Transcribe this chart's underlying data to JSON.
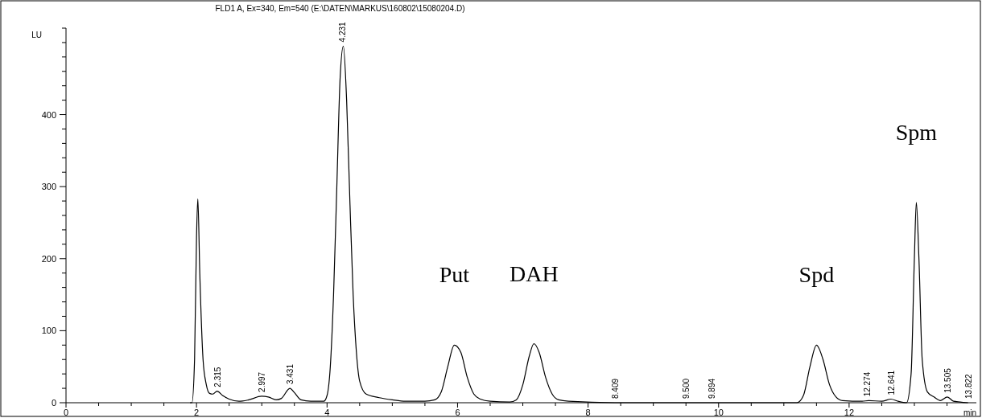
{
  "chart_data": {
    "type": "line",
    "title": "FLD1 A, Ex=340, Em=540 (E:\\DATEN\\MARKUS\\160802\\15080204.D)",
    "xlabel": "min",
    "ylabel": "LU",
    "xlim": [
      0,
      13.95
    ],
    "ylim": [
      0,
      520
    ],
    "xticks": [
      0,
      {
        "value": 0.5,
        "label": null
      },
      {
        "value": 1,
        "label": null
      },
      {
        "value": 1.5,
        "label": null
      },
      2,
      {
        "value": 2.5,
        "label": null
      },
      {
        "value": 3,
        "label": null
      },
      {
        "value": 3.5,
        "label": null
      },
      4,
      {
        "value": 4.5,
        "label": null
      },
      {
        "value": 5,
        "label": null
      },
      {
        "value": 5.5,
        "label": null
      },
      6,
      {
        "value": 6.5,
        "label": null
      },
      {
        "value": 7,
        "label": null
      },
      {
        "value": 7.5,
        "label": null
      },
      8,
      {
        "value": 8.5,
        "label": null
      },
      {
        "value": 9,
        "label": null
      },
      {
        "value": 9.5,
        "label": null
      },
      10,
      {
        "value": 10.5,
        "label": null
      },
      {
        "value": 11,
        "label": null
      },
      {
        "value": 11.5,
        "label": null
      },
      12,
      {
        "value": 12.5,
        "label": null
      },
      {
        "value": 13,
        "label": null
      },
      {
        "value": 13.5,
        "label": null
      }
    ],
    "yticks": [
      0,
      {
        "value": 20,
        "label": null
      },
      {
        "value": 40,
        "label": null
      },
      {
        "value": 60,
        "label": null
      },
      {
        "value": 80,
        "label": null
      },
      100,
      {
        "value": 120,
        "label": null
      },
      {
        "value": 140,
        "label": null
      },
      {
        "value": 160,
        "label": null
      },
      {
        "value": 180,
        "label": null
      },
      200,
      {
        "value": 220,
        "label": null
      },
      {
        "value": 240,
        "label": null
      },
      {
        "value": 260,
        "label": null
      },
      {
        "value": 280,
        "label": null
      },
      300,
      {
        "value": 320,
        "label": null
      },
      {
        "value": 340,
        "label": null
      },
      {
        "value": 360,
        "label": null
      },
      {
        "value": 380,
        "label": null
      },
      400,
      {
        "value": 420,
        "label": null
      },
      {
        "value": 440,
        "label": null
      },
      {
        "value": 460,
        "label": null
      },
      {
        "value": 480,
        "label": null
      },
      {
        "value": 500,
        "label": null
      },
      {
        "value": 520,
        "label": null
      }
    ],
    "grid": false,
    "marker": "none",
    "line_style": "solid",
    "series": [
      {
        "color": "#000000",
        "x": [
          1.9,
          1.93,
          1.97,
          2.0,
          2.02,
          2.05,
          2.1,
          2.15,
          2.2,
          2.25,
          2.315,
          2.4,
          2.5,
          2.65,
          2.8,
          2.997,
          3.1,
          3.22,
          3.3,
          3.431,
          3.5,
          3.6,
          3.75,
          3.95,
          4.0,
          4.05,
          4.1,
          4.15,
          4.2,
          4.25,
          4.3,
          4.35,
          4.4,
          4.45,
          4.5,
          4.6,
          4.8,
          5.0,
          5.2,
          5.5,
          5.65,
          5.75,
          5.85,
          5.95,
          6.05,
          6.15,
          6.25,
          6.35,
          6.5,
          6.8,
          6.9,
          7.0,
          7.1,
          7.17,
          7.25,
          7.35,
          7.45,
          7.55,
          7.7,
          8.409,
          9.5,
          9.894,
          11.2,
          11.3,
          11.4,
          11.5,
          11.6,
          11.7,
          11.8,
          11.9,
          12.2,
          12.3,
          12.5,
          12.641,
          12.75,
          12.88,
          12.95,
          13.0,
          13.03,
          13.07,
          13.12,
          13.2,
          13.3,
          13.4,
          13.505,
          13.6,
          13.7,
          13.822
        ],
        "values": [
          0,
          0,
          60,
          230,
          283,
          180,
          60,
          25,
          13,
          12,
          16,
          10,
          5,
          2,
          4,
          9,
          8,
          4,
          6,
          20,
          14,
          4,
          2,
          2,
          10,
          50,
          150,
          300,
          450,
          495,
          420,
          280,
          150,
          70,
          30,
          12,
          7,
          4,
          2,
          2,
          4,
          15,
          50,
          80,
          70,
          35,
          12,
          5,
          2,
          1,
          4,
          25,
          65,
          82,
          70,
          35,
          12,
          4,
          2,
          0,
          0,
          0,
          0,
          10,
          50,
          80,
          60,
          25,
          8,
          3,
          2,
          3,
          2,
          5,
          2,
          0,
          40,
          200,
          278,
          200,
          60,
          15,
          8,
          3,
          8,
          2,
          1,
          0
        ]
      }
    ],
    "annotations": [
      {
        "text": "2.315",
        "x": 2.315,
        "y": 16
      },
      {
        "text": "2.997",
        "x": 2.997,
        "y": 9
      },
      {
        "text": "3.431",
        "x": 3.431,
        "y": 20
      },
      {
        "text": "4.231",
        "x": 4.231,
        "y": 495
      },
      {
        "text": "8.409",
        "x": 8.409,
        "y": 0
      },
      {
        "text": "9.500",
        "x": 9.5,
        "y": 0
      },
      {
        "text": "9.894",
        "x": 9.894,
        "y": 0
      },
      {
        "text": "12.274",
        "x": 12.274,
        "y": 3
      },
      {
        "text": "12.641",
        "x": 12.641,
        "y": 5
      },
      {
        "text": "13.505",
        "x": 13.505,
        "y": 8
      },
      {
        "text": "13.822",
        "x": 13.822,
        "y": 0
      },
      {
        "text": "Put",
        "x": 5.95,
        "y": 80
      },
      {
        "text": "DAH",
        "x": 7.17,
        "y": 82
      },
      {
        "text": "Spd",
        "x": 11.5,
        "y": 80
      },
      {
        "text": "Spm",
        "x": 13.03,
        "y": 278
      }
    ]
  }
}
